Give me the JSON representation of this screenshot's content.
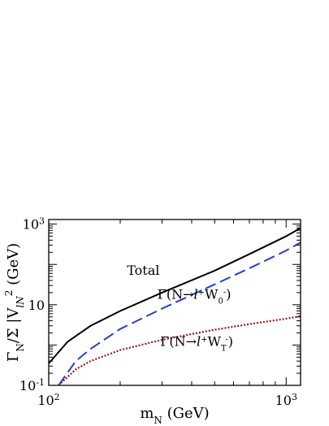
{
  "chart_data": {
    "type": "line",
    "title": "",
    "xlabel": {
      "main": "m",
      "sub": "N",
      "tail": " (GeV)"
    },
    "ylabel": {
      "gamma": "Γ",
      "sub": "N",
      "mid": "/Σ |V",
      "sub2": "lN",
      "sup": "2",
      "tail": " (GeV)"
    },
    "xscale": "log",
    "yscale": "log",
    "xlim": [
      100,
      1150
    ],
    "ylim": [
      0.1,
      1300
    ],
    "xticks": [
      {
        "value": 100,
        "base": "10",
        "exp": "2"
      },
      {
        "value": 1000,
        "base": "10",
        "exp": "3"
      }
    ],
    "yticks": [
      {
        "value": 0.1,
        "base": "10",
        "exp": "-1"
      },
      {
        "value": 10,
        "base": "10",
        "exp": ""
      },
      {
        "value": 1000,
        "base": "10",
        "exp": "3"
      }
    ],
    "grid": false,
    "series": [
      {
        "name": "Total",
        "color": "#000000",
        "style": "solid",
        "points": [
          [
            100,
            0.35
          ],
          [
            120,
            1.2
          ],
          [
            150,
            3.0
          ],
          [
            200,
            7.0
          ],
          [
            300,
            20
          ],
          [
            500,
            70
          ],
          [
            700,
            180
          ],
          [
            1000,
            500
          ],
          [
            1150,
            800
          ]
        ]
      },
      {
        "name": "Γ(N→l+W0−)",
        "color": "#1f3fd6",
        "style": "dashed",
        "points": [
          [
            110,
            0.1
          ],
          [
            130,
            0.4
          ],
          [
            150,
            0.8
          ],
          [
            200,
            2.5
          ],
          [
            300,
            8
          ],
          [
            500,
            32
          ],
          [
            700,
            80
          ],
          [
            1000,
            220
          ],
          [
            1150,
            350
          ]
        ]
      },
      {
        "name": "Γ(N→l+WT−)",
        "color": "#a01818",
        "style": "dotted",
        "points": [
          [
            110,
            0.1
          ],
          [
            130,
            0.25
          ],
          [
            150,
            0.4
          ],
          [
            200,
            0.75
          ],
          [
            300,
            1.35
          ],
          [
            500,
            2.4
          ],
          [
            700,
            3.3
          ],
          [
            1000,
            4.5
          ],
          [
            1150,
            5.2
          ]
        ]
      }
    ],
    "annotations": [
      {
        "text": "Total",
        "x": 250,
        "y": 55
      },
      {
        "text_prefix": "Γ(N→",
        "l": "l",
        "l_sup": "+",
        "W": "W",
        "W_sub": "0",
        "W_sup": "-",
        "suffix": ")",
        "x": 410,
        "y": 14
      },
      {
        "text_prefix": "Γ(N→",
        "l": "l",
        "l_sup": "+",
        "W": "W",
        "W_sub": "T",
        "W_sup": "-",
        "suffix": ")",
        "x": 420,
        "y": 0.95
      }
    ]
  }
}
